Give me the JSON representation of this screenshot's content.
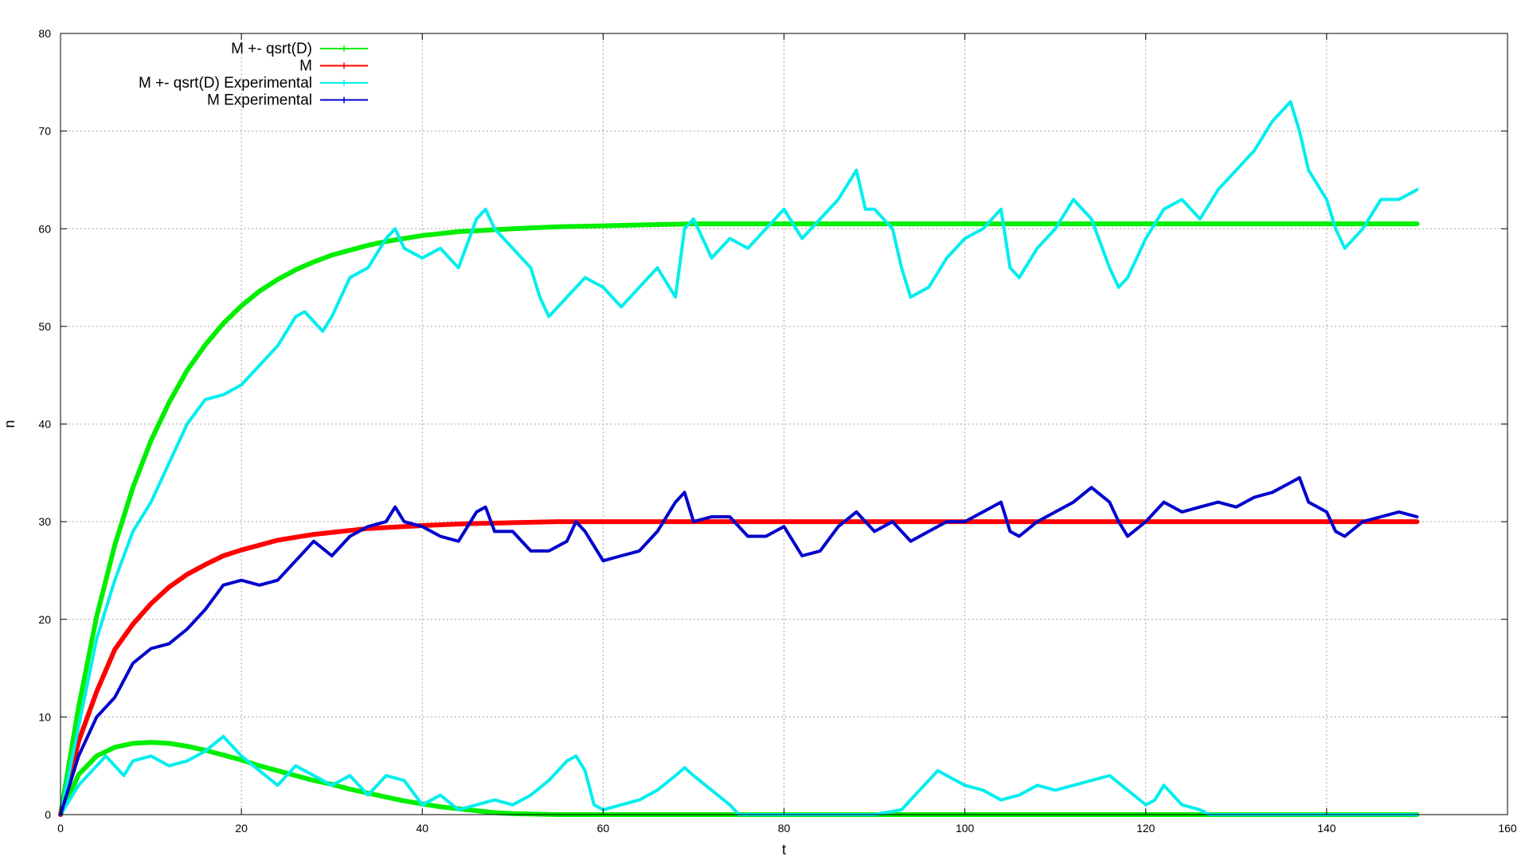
{
  "chart_data": {
    "type": "line",
    "title": "",
    "xlabel": "t",
    "ylabel": "n",
    "xlim": [
      0,
      160
    ],
    "ylim": [
      0,
      80
    ],
    "xticks": [
      0,
      20,
      40,
      60,
      80,
      100,
      120,
      140,
      160
    ],
    "yticks": [
      0,
      10,
      20,
      30,
      40,
      50,
      60,
      70,
      80
    ],
    "grid": true,
    "legend_position": "top-left",
    "legend": [
      {
        "label": "M +- qsrt(D)",
        "color": "#00ee00"
      },
      {
        "label": "M",
        "color": "#ff0000"
      },
      {
        "label": "M +- qsrt(D) Experimental",
        "color": "#00eeee"
      },
      {
        "label": "M Experimental",
        "color": "#0000cc"
      }
    ],
    "series": [
      {
        "name": "M +- qsrt(D)",
        "color": "#00ee00",
        "width": 6,
        "x": [
          0,
          2,
          4,
          6,
          8,
          10,
          12,
          14,
          16,
          18,
          20,
          22,
          24,
          26,
          28,
          30,
          32,
          34,
          36,
          38,
          40,
          42,
          44,
          46,
          48,
          50,
          55,
          60,
          65,
          70,
          80,
          90,
          100,
          110,
          120,
          130,
          140,
          150
        ],
        "y": [
          0,
          11,
          20.3,
          27.6,
          33.5,
          38.3,
          42.2,
          45.5,
          48.1,
          50.3,
          52.1,
          53.6,
          54.8,
          55.8,
          56.6,
          57.3,
          57.8,
          58.3,
          58.7,
          59.0,
          59.3,
          59.5,
          59.7,
          59.8,
          59.9,
          60.0,
          60.2,
          60.3,
          60.4,
          60.5,
          60.5,
          60.5,
          60.5,
          60.5,
          60.5,
          60.5,
          60.5,
          60.5
        ]
      },
      {
        "name": "M +- qsrt(D)",
        "color": "#00ee00",
        "width": 6,
        "x": [
          0,
          2,
          4,
          6,
          8,
          10,
          12,
          14,
          16,
          18,
          20,
          22,
          24,
          26,
          28,
          30,
          32,
          34,
          36,
          38,
          40,
          42,
          44,
          46,
          48,
          50,
          55,
          60,
          65,
          70,
          80,
          90,
          100,
          110,
          120,
          130,
          140,
          150
        ],
        "y": [
          0,
          4.1,
          6.0,
          6.9,
          7.3,
          7.4,
          7.3,
          7.0,
          6.6,
          6.1,
          5.6,
          5.0,
          4.5,
          4.0,
          3.5,
          3.1,
          2.6,
          2.2,
          1.8,
          1.4,
          1.1,
          0.8,
          0.6,
          0.4,
          0.2,
          0.1,
          0,
          0,
          0,
          0,
          0,
          0,
          0,
          0,
          0,
          0,
          0,
          0
        ]
      },
      {
        "name": "M",
        "color": "#ff0000",
        "width": 6,
        "x": [
          0,
          2,
          4,
          6,
          8,
          10,
          12,
          14,
          16,
          18,
          20,
          22,
          24,
          26,
          28,
          30,
          32,
          34,
          36,
          38,
          40,
          45,
          50,
          55,
          60,
          70,
          80,
          90,
          100,
          110,
          120,
          130,
          140,
          150
        ],
        "y": [
          0,
          7.5,
          12.6,
          16.9,
          19.5,
          21.6,
          23.3,
          24.6,
          25.6,
          26.5,
          27.1,
          27.6,
          28.1,
          28.4,
          28.7,
          28.9,
          29.1,
          29.3,
          29.4,
          29.5,
          29.6,
          29.8,
          29.9,
          30,
          30,
          30,
          30,
          30,
          30,
          30,
          30,
          30,
          30,
          30
        ]
      },
      {
        "name": "M +- qsrt(D) Experimental",
        "color": "#00eeee",
        "width": 4,
        "x": [
          0,
          2,
          4,
          6,
          8,
          10,
          12,
          14,
          16,
          18,
          20,
          22,
          24,
          26,
          27,
          28,
          29,
          30,
          32,
          34,
          36,
          37,
          38,
          40,
          42,
          44,
          46,
          47,
          48,
          50,
          52,
          53,
          54,
          56,
          58,
          60,
          62,
          64,
          66,
          68,
          69,
          70,
          71,
          72,
          74,
          76,
          78,
          80,
          82,
          84,
          86,
          88,
          89,
          90,
          92,
          93,
          94,
          96,
          98,
          100,
          102,
          104,
          105,
          106,
          108,
          110,
          112,
          114,
          116,
          117,
          118,
          120,
          122,
          124,
          126,
          128,
          130,
          132,
          134,
          136,
          137,
          138,
          140,
          141,
          142,
          144,
          146,
          148,
          150
        ],
        "y": [
          0,
          9,
          18,
          24,
          29,
          32,
          36,
          40,
          42.5,
          43,
          44,
          46,
          48,
          51,
          51.5,
          50.5,
          49.5,
          51,
          55,
          56,
          59,
          60,
          58,
          57,
          58,
          56,
          61,
          62,
          60,
          58,
          56,
          53,
          51,
          53,
          55,
          54,
          52,
          54,
          56,
          53,
          60,
          61,
          59,
          57,
          59,
          58,
          60,
          62,
          59,
          61,
          63,
          66,
          62,
          62,
          60,
          56,
          53,
          54,
          57,
          59,
          60,
          62,
          56,
          55,
          58,
          60,
          63,
          61,
          56,
          54,
          55,
          59,
          62,
          63,
          61,
          64,
          66,
          68,
          71,
          73,
          70,
          66,
          63,
          60,
          58,
          60,
          63,
          63,
          64
        ]
      },
      {
        "name": "M +- qsrt(D) Experimental",
        "color": "#00eeee",
        "width": 4,
        "x": [
          0,
          2,
          4,
          5,
          7,
          8,
          10,
          12,
          14,
          16,
          18,
          20,
          22,
          24,
          26,
          28,
          30,
          32,
          34,
          36,
          38,
          40,
          42,
          44,
          46,
          48,
          50,
          52,
          54,
          56,
          57,
          58,
          59,
          60,
          62,
          64,
          66,
          68,
          69,
          70,
          72,
          74,
          75,
          80,
          90,
          93,
          95,
          97,
          98,
          100,
          102,
          104,
          106,
          108,
          110,
          112,
          114,
          116,
          118,
          120,
          121,
          122,
          124,
          126,
          127,
          130,
          140,
          150
        ],
        "y": [
          0,
          3,
          5,
          6,
          4,
          5.5,
          6,
          5,
          5.5,
          6.5,
          8,
          6,
          4.5,
          3,
          5,
          4,
          3,
          4,
          2,
          4,
          3.5,
          1,
          2,
          0.5,
          1,
          1.5,
          1,
          2,
          3.5,
          5.5,
          6,
          4.5,
          1,
          0.5,
          1,
          1.5,
          2.5,
          4,
          4.8,
          4,
          2.5,
          1,
          0,
          0,
          0,
          0.5,
          2.5,
          4.5,
          4,
          3,
          2.5,
          1.5,
          2,
          3,
          2.5,
          3,
          3.5,
          4,
          2.5,
          1,
          1.5,
          3,
          1,
          0.5,
          0,
          0,
          0,
          0
        ]
      },
      {
        "name": "M Experimental",
        "color": "#0000cc",
        "width": 4,
        "x": [
          0,
          2,
          4,
          6,
          8,
          10,
          12,
          14,
          16,
          18,
          20,
          22,
          24,
          26,
          28,
          30,
          32,
          34,
          36,
          37,
          38,
          40,
          42,
          44,
          46,
          47,
          48,
          50,
          52,
          54,
          56,
          57,
          58,
          60,
          62,
          64,
          66,
          68,
          69,
          70,
          72,
          74,
          76,
          78,
          80,
          82,
          84,
          86,
          88,
          90,
          92,
          94,
          96,
          98,
          100,
          102,
          104,
          105,
          106,
          108,
          110,
          112,
          114,
          116,
          117,
          118,
          120,
          122,
          124,
          126,
          128,
          130,
          132,
          134,
          136,
          137,
          138,
          140,
          141,
          142,
          144,
          146,
          148,
          150
        ],
        "y": [
          0,
          6,
          10,
          12,
          15.5,
          17,
          17.5,
          19,
          21,
          23.5,
          24,
          23.5,
          24,
          26,
          28,
          26.5,
          28.5,
          29.5,
          30,
          31.5,
          30,
          29.5,
          28.5,
          28,
          31,
          31.5,
          29,
          29,
          27,
          27,
          28,
          30,
          29,
          26,
          26.5,
          27,
          29,
          32,
          33,
          30,
          30.5,
          30.5,
          28.5,
          28.5,
          29.5,
          26.5,
          27,
          29.5,
          31,
          29,
          30,
          28,
          29,
          30,
          30,
          31,
          32,
          29,
          28.5,
          30,
          31,
          32,
          33.5,
          32,
          30,
          28.5,
          30,
          32,
          31,
          31.5,
          32,
          31.5,
          32.5,
          33,
          34,
          34.5,
          32,
          31,
          29,
          28.5,
          30,
          30.5,
          31,
          30.5
        ]
      }
    ]
  }
}
